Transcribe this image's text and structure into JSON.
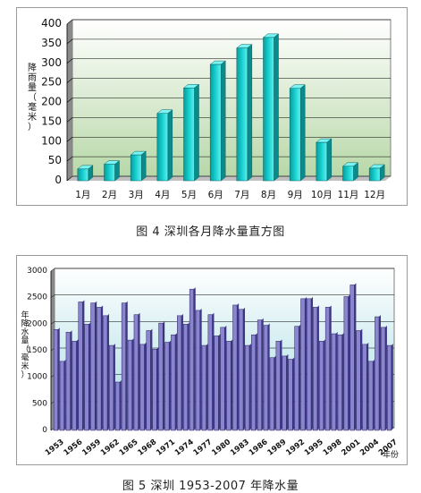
{
  "figure4": {
    "caption": "图 4   深圳各月降水量直方图",
    "chart_data": {
      "type": "bar",
      "categories": [
        "1月",
        "2月",
        "3月",
        "4月",
        "5月",
        "6月",
        "7月",
        "8月",
        "9月",
        "10月",
        "11月",
        "12月"
      ],
      "values": [
        30,
        42,
        66,
        172,
        237,
        297,
        339,
        366,
        236,
        98,
        37,
        32
      ],
      "title": "",
      "xlabel": "",
      "ylabel": "降雨量（毫米）",
      "ylim": [
        0,
        400
      ],
      "yticks": [
        0,
        50,
        100,
        150,
        200,
        250,
        300,
        350,
        400
      ],
      "grid": true,
      "legend": "none",
      "colors": {
        "bar": "#14cccc",
        "bar_edge": "#0a5f5f",
        "plot_top": "#ffffff",
        "plot_bottom": "#b8d8a8"
      }
    }
  },
  "figure5": {
    "caption": "图 5   深圳 1953-2007 年降水量",
    "chart_data": {
      "type": "bar",
      "x": [
        1953,
        1954,
        1955,
        1956,
        1957,
        1958,
        1959,
        1960,
        1961,
        1962,
        1963,
        1964,
        1965,
        1966,
        1967,
        1968,
        1969,
        1970,
        1971,
        1972,
        1973,
        1974,
        1975,
        1976,
        1977,
        1978,
        1979,
        1980,
        1981,
        1982,
        1983,
        1984,
        1985,
        1986,
        1987,
        1988,
        1989,
        1990,
        1991,
        1992,
        1993,
        1994,
        1995,
        1996,
        1997,
        1998,
        1999,
        2000,
        2001,
        2002,
        2003,
        2004,
        2005,
        2006,
        2007
      ],
      "categories": [
        "1953",
        "1956",
        "1959",
        "1962",
        "1965",
        "1968",
        "1971",
        "1974",
        "1977",
        "1980",
        "1983",
        "1986",
        "1989",
        "1992",
        "1995",
        "1998",
        "2001",
        "2004",
        "2007"
      ],
      "values": [
        1900,
        1300,
        1850,
        1680,
        2420,
        2000,
        2400,
        2320,
        2160,
        1600,
        910,
        2400,
        1700,
        2180,
        1620,
        1880,
        1530,
        2020,
        1660,
        1800,
        2160,
        2000,
        2660,
        2260,
        1600,
        2180,
        1780,
        1940,
        1680,
        2360,
        2280,
        1600,
        1800,
        2080,
        1980,
        1370,
        1680,
        1400,
        1340,
        1960,
        2480,
        2480,
        2320,
        1680,
        2320,
        1820,
        1800,
        2520,
        2740,
        1880,
        1620,
        1300,
        2140,
        1940,
        1600
      ],
      "title": "",
      "xlabel": "年份",
      "ylabel": "年降水量（毫米）",
      "ylim": [
        0,
        3000
      ],
      "yticks": [
        0,
        500,
        1000,
        1500,
        2000,
        2500,
        3000
      ],
      "grid": true,
      "legend": "none",
      "colors": {
        "bar": "#8b85cf",
        "bar_edge": "#25205a",
        "plot_top": "#ffffff",
        "plot_bottom": "#a6dbe3"
      }
    }
  }
}
